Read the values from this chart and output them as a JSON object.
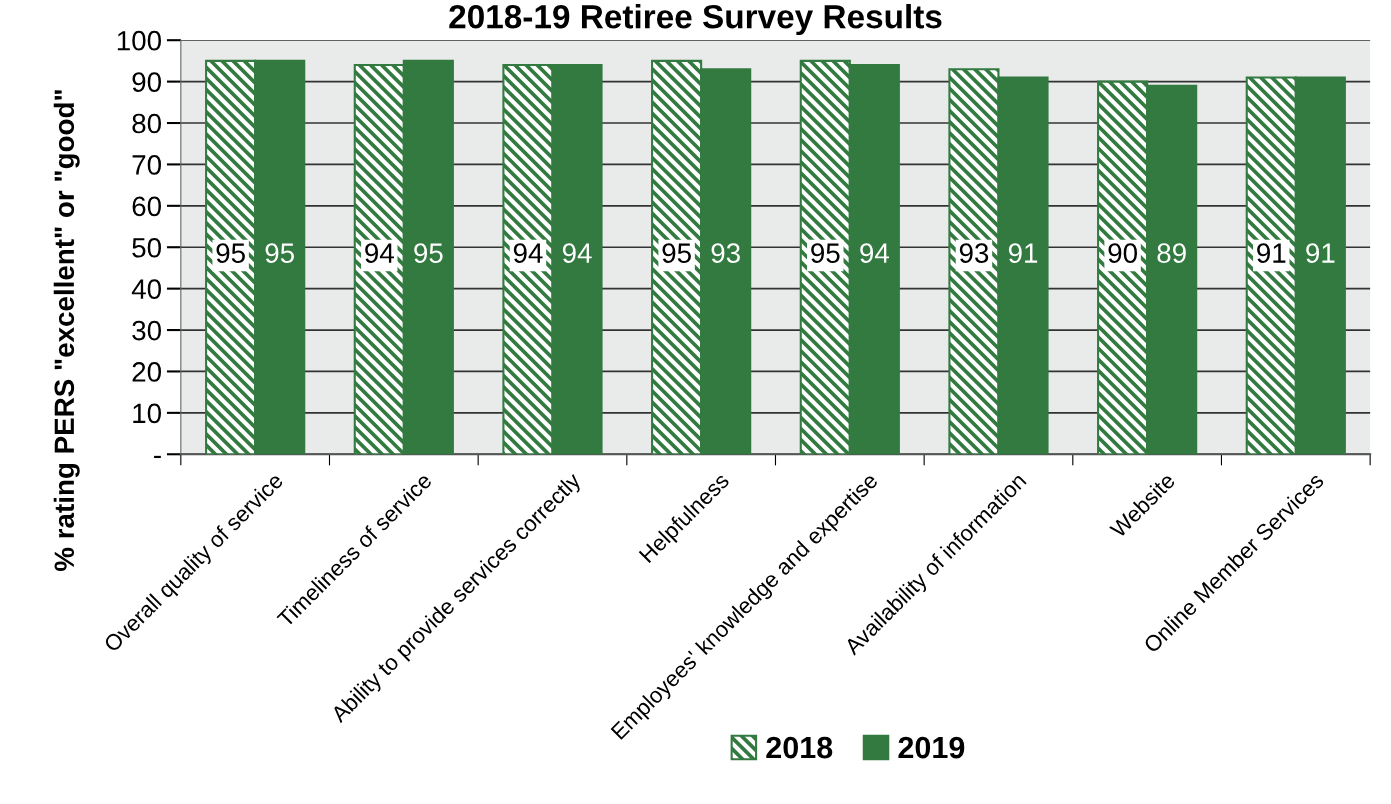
{
  "chart_data": {
    "type": "bar",
    "title": "2018-19 Retiree Survey Results",
    "ylabel": "% rating PERS \"excellent\" or \"good\"",
    "categories": [
      "Overall quality of service",
      "Timeliness of service",
      "Ability to provide services correctly",
      "Helpfulness",
      "Employees' knowledge and expertise",
      "Availability of information",
      "Website",
      "Online Member Services"
    ],
    "series": [
      {
        "name": "2018",
        "color": "#337a41",
        "values": [
          95,
          94,
          94,
          95,
          95,
          93,
          90,
          91
        ]
      },
      {
        "name": "2019",
        "color": "#337a41",
        "values": [
          95,
          95,
          94,
          93,
          94,
          91,
          89,
          91
        ]
      }
    ],
    "ylim": [
      0,
      100
    ],
    "yticks": [
      {
        "value": 0,
        "label": "-"
      },
      10,
      20,
      30,
      40,
      50,
      60,
      70,
      80,
      90,
      100
    ],
    "grid": "y",
    "legend": "bottom",
    "data_labels": true
  }
}
